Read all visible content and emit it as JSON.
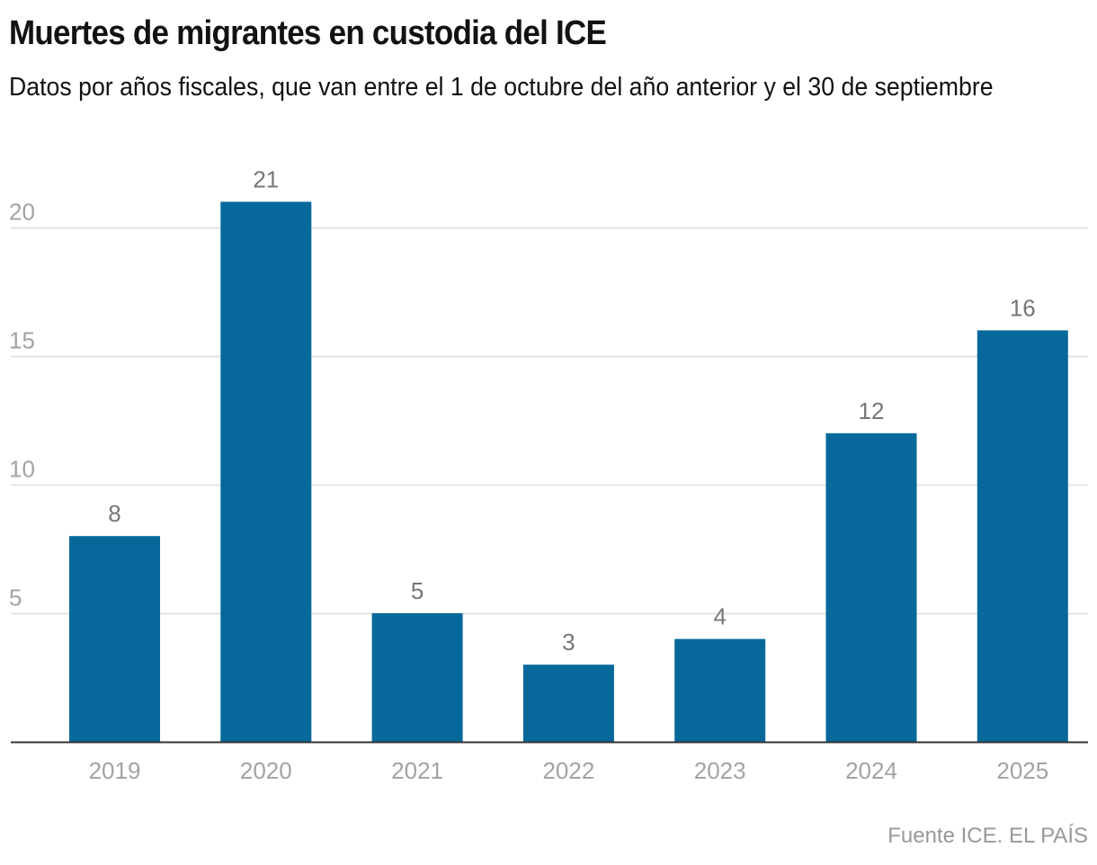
{
  "header": {
    "title": "Muertes de migrantes en custodia del ICE",
    "subtitle": "Datos por años fiscales, que van entre el 1 de octubre del año anterior y el 30 de septiembre"
  },
  "footer": {
    "source": "Fuente ICE. EL PAÍS"
  },
  "colors": {
    "bar": "#07699b",
    "grid": "#e3e3e3",
    "axis": "#333333"
  },
  "chart_data": {
    "type": "bar",
    "title": "Muertes de migrantes en custodia del ICE",
    "subtitle": "Datos por años fiscales, que van entre el 1 de octubre del año anterior y el 30 de septiembre",
    "categories": [
      "2019",
      "2020",
      "2021",
      "2022",
      "2023",
      "2024",
      "2025"
    ],
    "values": [
      8,
      21,
      5,
      3,
      4,
      12,
      16
    ],
    "data_labels": [
      "8",
      "21",
      "5",
      "3",
      "4",
      "12",
      "16"
    ],
    "xlabel": "",
    "ylabel": "",
    "ylim": [
      0,
      21
    ],
    "yticks": [
      5,
      10,
      15,
      20
    ],
    "ytick_labels": [
      "5",
      "10",
      "15",
      "20"
    ],
    "grid": true,
    "legend": "none",
    "source": "Fuente ICE. EL PAÍS"
  }
}
